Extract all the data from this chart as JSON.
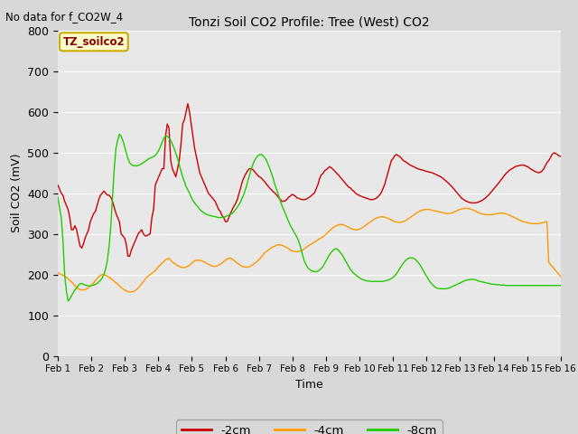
{
  "title": "Tonzi Soil CO2 Profile: Tree (West) CO2",
  "subtitle": "No data for f_CO2W_4",
  "xlabel": "Time",
  "ylabel": "Soil CO2 (mV)",
  "ylim": [
    0,
    800
  ],
  "xlim": [
    0,
    15
  ],
  "xtick_labels": [
    "Feb 1",
    "Feb 2",
    "Feb 3",
    "Feb 4",
    "Feb 5",
    "Feb 6",
    "Feb 7",
    "Feb 8",
    "Feb 9",
    "Feb 10",
    "Feb 11",
    "Feb 12",
    "Feb 13",
    "Feb 14",
    "Feb 15",
    "Feb 16"
  ],
  "background_color": "#d8d8d8",
  "plot_bg_color": "#e8e8e8",
  "legend_label": "TZ_soilco2",
  "line_colors": {
    "2cm": "#cc0000",
    "4cm": "#ff9900",
    "8cm": "#22cc00"
  },
  "legend_entries": [
    "-2cm",
    "-4cm",
    "-8cm"
  ],
  "series_2cm": [
    420,
    410,
    400,
    395,
    380,
    370,
    360,
    340,
    310,
    310,
    320,
    310,
    290,
    270,
    265,
    275,
    290,
    300,
    310,
    330,
    340,
    350,
    355,
    370,
    385,
    395,
    400,
    405,
    400,
    395,
    395,
    390,
    380,
    365,
    350,
    340,
    330,
    300,
    295,
    290,
    275,
    245,
    245,
    260,
    270,
    280,
    290,
    300,
    305,
    310,
    300,
    295,
    295,
    298,
    300,
    340,
    360,
    420,
    430,
    440,
    450,
    460,
    460,
    540,
    570,
    560,
    480,
    460,
    450,
    440,
    460,
    480,
    520,
    570,
    580,
    600,
    620,
    600,
    570,
    540,
    510,
    490,
    470,
    450,
    440,
    430,
    420,
    410,
    400,
    395,
    390,
    385,
    380,
    370,
    360,
    355,
    345,
    340,
    330,
    330,
    340,
    350,
    360,
    368,
    375,
    385,
    400,
    415,
    430,
    440,
    448,
    455,
    460,
    460,
    458,
    453,
    448,
    443,
    440,
    437,
    432,
    428,
    422,
    417,
    412,
    408,
    403,
    400,
    395,
    390,
    385,
    380,
    380,
    381,
    385,
    390,
    393,
    397,
    395,
    392,
    388,
    387,
    385,
    384,
    384,
    385,
    387,
    390,
    393,
    397,
    400,
    410,
    420,
    435,
    445,
    448,
    455,
    458,
    462,
    465,
    462,
    458,
    454,
    449,
    445,
    440,
    435,
    430,
    425,
    420,
    415,
    413,
    408,
    405,
    400,
    397,
    395,
    393,
    391,
    390,
    388,
    387,
    385,
    384,
    384,
    385,
    387,
    390,
    395,
    400,
    410,
    420,
    435,
    450,
    465,
    480,
    485,
    492,
    495,
    492,
    490,
    485,
    480,
    478,
    475,
    472,
    469,
    467,
    465,
    463,
    461,
    459,
    458,
    457,
    456,
    454,
    453,
    452,
    451,
    450,
    448,
    446,
    444,
    442,
    440,
    437,
    433,
    430,
    426,
    422,
    418,
    413,
    408,
    403,
    398,
    393,
    388,
    385,
    382,
    380,
    378,
    377,
    376,
    376,
    376,
    377,
    378,
    380,
    382,
    385,
    388,
    392,
    396,
    401,
    406,
    411,
    416,
    421,
    426,
    432,
    437,
    443,
    448,
    452,
    456,
    459,
    461,
    464,
    466,
    467,
    468,
    469,
    469,
    468,
    466,
    464,
    461,
    458,
    456,
    453,
    452,
    450,
    451,
    454,
    459,
    467,
    475,
    480,
    487,
    495,
    499,
    498,
    495,
    492,
    490
  ],
  "series_4cm": [
    205,
    202,
    200,
    198,
    196,
    193,
    190,
    185,
    182,
    178,
    172,
    168,
    165,
    163,
    162,
    162,
    163,
    165,
    168,
    172,
    175,
    180,
    185,
    190,
    195,
    198,
    200,
    200,
    198,
    196,
    193,
    190,
    187,
    183,
    180,
    177,
    172,
    168,
    165,
    162,
    160,
    158,
    157,
    157,
    158,
    160,
    163,
    167,
    172,
    177,
    182,
    188,
    193,
    197,
    200,
    203,
    206,
    210,
    215,
    220,
    224,
    228,
    232,
    236,
    238,
    240,
    235,
    230,
    228,
    225,
    222,
    220,
    218,
    217,
    217,
    218,
    220,
    223,
    226,
    230,
    234,
    235,
    235,
    235,
    234,
    232,
    230,
    227,
    225,
    223,
    221,
    220,
    220,
    221,
    223,
    225,
    228,
    232,
    235,
    238,
    240,
    240,
    238,
    235,
    231,
    228,
    225,
    222,
    220,
    219,
    218,
    218,
    219,
    221,
    224,
    227,
    230,
    234,
    238,
    243,
    248,
    253,
    257,
    260,
    263,
    266,
    268,
    270,
    272,
    273,
    273,
    272,
    270,
    268,
    266,
    263,
    260,
    258,
    257,
    256,
    256,
    257,
    258,
    260,
    263,
    266,
    269,
    272,
    274,
    277,
    280,
    282,
    285,
    288,
    290,
    293,
    296,
    300,
    304,
    308,
    312,
    315,
    318,
    320,
    322,
    323,
    323,
    322,
    320,
    318,
    316,
    314,
    312,
    311,
    310,
    310,
    311,
    313,
    315,
    318,
    321,
    324,
    327,
    330,
    333,
    336,
    338,
    340,
    341,
    342,
    342,
    341,
    340,
    338,
    336,
    334,
    332,
    330,
    329,
    328,
    328,
    329,
    330,
    332,
    334,
    337,
    340,
    343,
    346,
    349,
    352,
    354,
    356,
    358,
    359,
    360,
    360,
    360,
    359,
    358,
    357,
    356,
    355,
    354,
    353,
    352,
    351,
    350,
    350,
    350,
    351,
    352,
    354,
    356,
    358,
    360,
    361,
    362,
    363,
    363,
    362,
    361,
    360,
    358,
    356,
    354,
    352,
    350,
    349,
    348,
    347,
    347,
    347,
    347,
    347,
    348,
    349,
    350,
    350,
    351,
    351,
    350,
    349,
    347,
    346,
    344,
    342,
    340,
    338,
    336,
    334,
    332,
    330,
    329,
    328,
    327,
    326,
    325,
    325,
    325,
    325,
    325,
    326,
    327,
    328,
    329,
    330,
    230,
    225,
    220,
    215,
    210,
    205,
    200,
    195
  ],
  "series_8cm": [
    390,
    365,
    340,
    285,
    200,
    160,
    135,
    140,
    148,
    155,
    162,
    167,
    173,
    177,
    178,
    176,
    174,
    173,
    172,
    172,
    173,
    174,
    176,
    178,
    182,
    186,
    192,
    200,
    215,
    235,
    270,
    320,
    390,
    460,
    510,
    530,
    545,
    540,
    530,
    515,
    500,
    485,
    475,
    470,
    468,
    467,
    467,
    468,
    470,
    472,
    475,
    478,
    481,
    484,
    486,
    488,
    490,
    493,
    498,
    505,
    515,
    525,
    535,
    540,
    540,
    535,
    530,
    520,
    510,
    498,
    485,
    470,
    455,
    440,
    428,
    416,
    408,
    400,
    390,
    382,
    376,
    370,
    366,
    360,
    356,
    353,
    350,
    348,
    346,
    345,
    344,
    343,
    342,
    341,
    340,
    340,
    340,
    341,
    342,
    344,
    346,
    348,
    350,
    355,
    360,
    366,
    372,
    380,
    390,
    400,
    413,
    428,
    443,
    458,
    470,
    480,
    487,
    492,
    495,
    495,
    492,
    487,
    480,
    470,
    460,
    448,
    435,
    420,
    408,
    395,
    382,
    370,
    360,
    350,
    340,
    330,
    320,
    313,
    305,
    298,
    290,
    280,
    265,
    250,
    235,
    225,
    218,
    213,
    210,
    208,
    207,
    207,
    208,
    211,
    215,
    220,
    227,
    235,
    242,
    250,
    255,
    260,
    263,
    263,
    260,
    255,
    250,
    243,
    235,
    228,
    220,
    213,
    208,
    203,
    200,
    196,
    193,
    190,
    188,
    186,
    185,
    184,
    184,
    183,
    183,
    183,
    183,
    183,
    183,
    183,
    183,
    184,
    185,
    186,
    188,
    190,
    193,
    197,
    202,
    208,
    215,
    222,
    228,
    233,
    237,
    240,
    241,
    241,
    240,
    237,
    233,
    228,
    222,
    215,
    207,
    200,
    193,
    186,
    180,
    175,
    171,
    168,
    166,
    165,
    165,
    165,
    165,
    165,
    166,
    167,
    169,
    171,
    173,
    175,
    177,
    179,
    181,
    183,
    185,
    186,
    187,
    188,
    188,
    188,
    187,
    186,
    184,
    183,
    182,
    181,
    180,
    179,
    178,
    177,
    176,
    176,
    175,
    175,
    175,
    174,
    174,
    174,
    173,
    173,
    173,
    173,
    173,
    173,
    173,
    173,
    173,
    173,
    173,
    173,
    173,
    173,
    173,
    173,
    173,
    173,
    173,
    173,
    173,
    173,
    173,
    173,
    173,
    173,
    173,
    173,
    173,
    173,
    173,
    173,
    173
  ]
}
